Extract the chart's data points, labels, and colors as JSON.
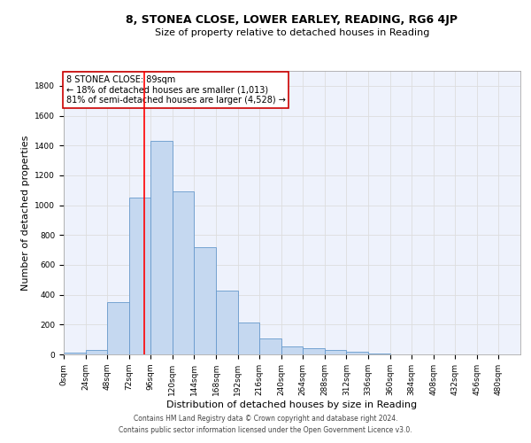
{
  "title": "8, STONEA CLOSE, LOWER EARLEY, READING, RG6 4JP",
  "subtitle": "Size of property relative to detached houses in Reading",
  "xlabel": "Distribution of detached houses by size in Reading",
  "ylabel": "Number of detached properties",
  "footer_line1": "Contains HM Land Registry data © Crown copyright and database right 2024.",
  "footer_line2": "Contains public sector information licensed under the Open Government Licence v3.0.",
  "bar_labels": [
    "0sqm",
    "24sqm",
    "48sqm",
    "72sqm",
    "96sqm",
    "120sqm",
    "144sqm",
    "168sqm",
    "192sqm",
    "216sqm",
    "240sqm",
    "264sqm",
    "288sqm",
    "312sqm",
    "336sqm",
    "360sqm",
    "384sqm",
    "408sqm",
    "432sqm",
    "456sqm",
    "480sqm"
  ],
  "bar_values": [
    10,
    30,
    350,
    1050,
    1430,
    1090,
    720,
    430,
    215,
    105,
    55,
    40,
    28,
    20,
    5,
    0,
    0,
    0,
    0,
    0,
    0
  ],
  "bar_color": "#c5d8f0",
  "bar_edge_color": "#6699cc",
  "grid_color": "#dddddd",
  "background_color": "#eef2fc",
  "annotation_text": "8 STONEA CLOSE: 89sqm\n← 18% of detached houses are smaller (1,013)\n81% of semi-detached houses are larger (4,528) →",
  "annotation_box_color": "#ffffff",
  "annotation_box_edge_color": "#cc0000",
  "red_line_x": 89,
  "bin_width": 24,
  "ylim": [
    0,
    1900
  ],
  "title_fontsize": 9,
  "subtitle_fontsize": 8,
  "ylabel_fontsize": 8,
  "xlabel_fontsize": 8,
  "tick_fontsize": 6.5,
  "annotation_fontsize": 7,
  "footer_fontsize": 5.5
}
